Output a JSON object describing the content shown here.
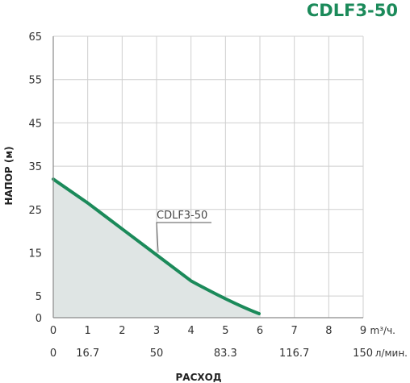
{
  "chart_data": {
    "type": "area",
    "title": "CDLF3-50",
    "ylabel": "НАПОР (м)",
    "xlabel": "РАСХОД",
    "x_unit": "m³/ч.",
    "x2_unit": "л/мин.",
    "xlim": [
      0,
      9
    ],
    "ylim": [
      0,
      65
    ],
    "y_ticks": [
      0,
      5,
      15,
      25,
      35,
      45,
      55,
      65
    ],
    "x_ticks": [
      0,
      1,
      2,
      3,
      4,
      5,
      6,
      7,
      8,
      9
    ],
    "x2_ticks": [
      {
        "value": 0,
        "label": "0"
      },
      {
        "value": 1,
        "label": "16.7"
      },
      {
        "value": 3,
        "label": "50"
      },
      {
        "value": 5,
        "label": "83.3"
      },
      {
        "value": 7,
        "label": "116.7"
      },
      {
        "value": 9,
        "label": "150"
      }
    ],
    "grid": true,
    "colors": {
      "line": "#1b8a5a",
      "fill": "#dfe5e4",
      "title": "#1b8a5a"
    },
    "series": [
      {
        "name": "CDLF3-50",
        "x": [
          0,
          1,
          2,
          3,
          4,
          5,
          6
        ],
        "y": [
          32,
          26.5,
          20.5,
          14.5,
          8.5,
          2.5,
          -4
        ]
      }
    ]
  }
}
